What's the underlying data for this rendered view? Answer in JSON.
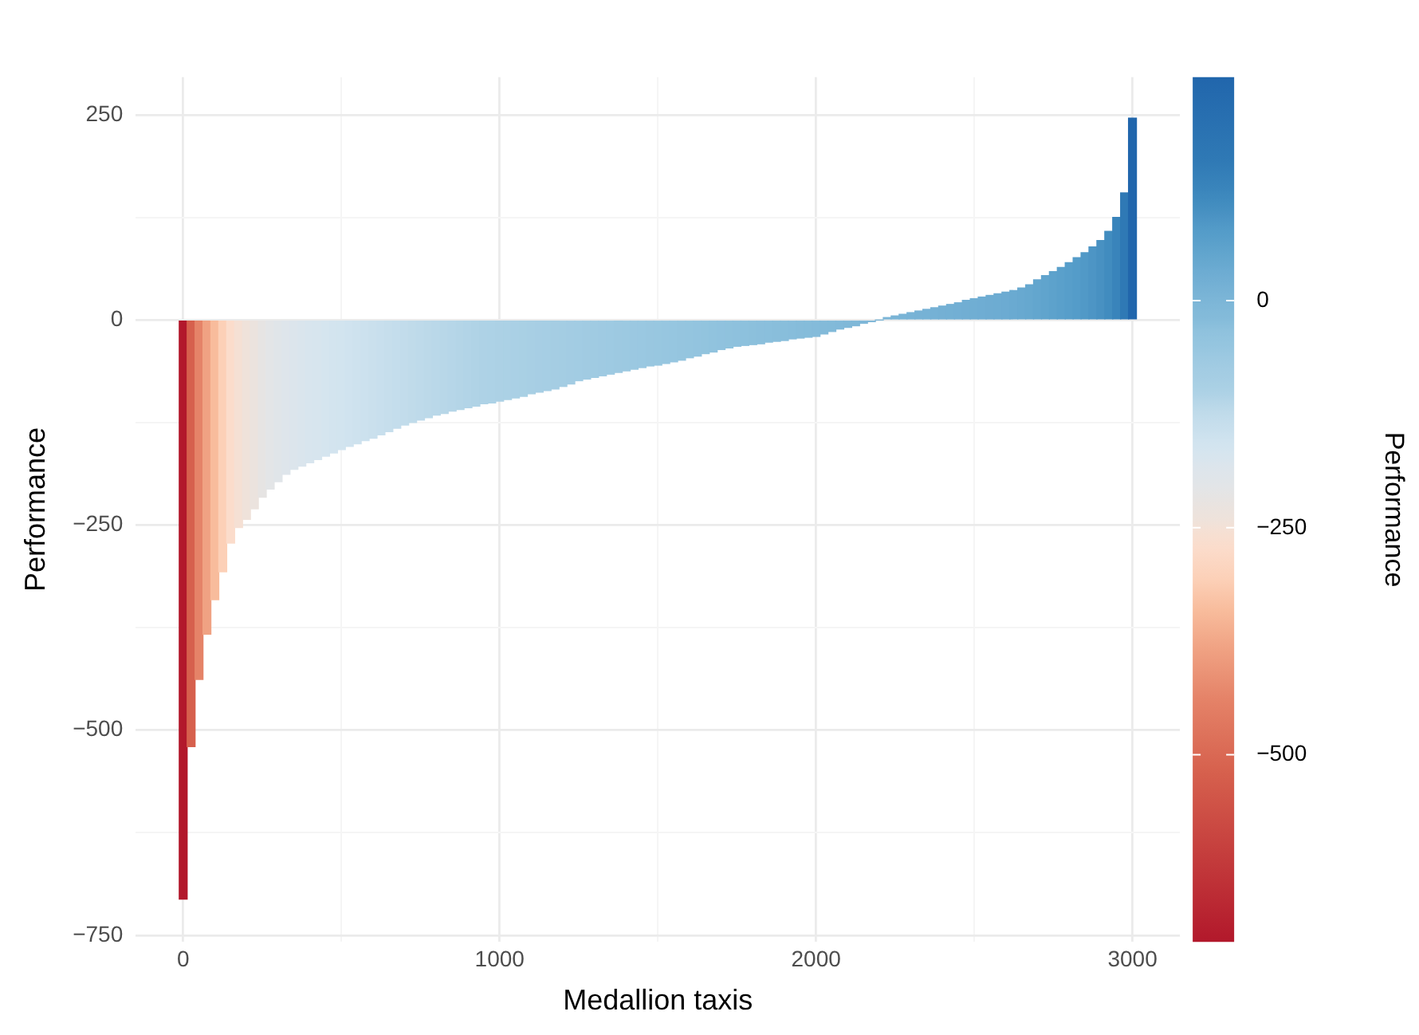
{
  "chart_data": {
    "type": "bar",
    "xlabel": "Medallion taxis",
    "ylabel": "Performance",
    "clabel": "Performance",
    "x": [
      0,
      25,
      50,
      75,
      100,
      125,
      150,
      175,
      200,
      225,
      250,
      275,
      300,
      325,
      350,
      375,
      400,
      425,
      450,
      475,
      500,
      525,
      550,
      575,
      600,
      625,
      650,
      675,
      700,
      725,
      750,
      775,
      800,
      825,
      850,
      875,
      900,
      925,
      950,
      975,
      1000,
      1025,
      1050,
      1075,
      1100,
      1125,
      1150,
      1175,
      1200,
      1225,
      1250,
      1275,
      1300,
      1325,
      1350,
      1375,
      1400,
      1425,
      1450,
      1475,
      1500,
      1525,
      1550,
      1575,
      1600,
      1625,
      1650,
      1675,
      1700,
      1725,
      1750,
      1775,
      1800,
      1825,
      1850,
      1875,
      1900,
      1925,
      1950,
      1975,
      2000,
      2025,
      2050,
      2075,
      2100,
      2125,
      2150,
      2175,
      2200,
      2225,
      2250,
      2275,
      2300,
      2325,
      2350,
      2375,
      2400,
      2425,
      2450,
      2475,
      2500,
      2525,
      2550,
      2575,
      2600,
      2625,
      2650,
      2675,
      2700,
      2725,
      2750,
      2775,
      2800,
      2825,
      2850,
      2875,
      2900,
      2925,
      2950,
      2975,
      3000
    ],
    "values": [
      -706,
      -520,
      -438,
      -383,
      -341,
      -307,
      -272,
      -253,
      -243,
      -230,
      -216,
      -206,
      -197,
      -188,
      -182,
      -178,
      -174,
      -170,
      -166,
      -162,
      -158,
      -154,
      -151,
      -147,
      -144,
      -140,
      -136,
      -132,
      -128,
      -125,
      -122,
      -119,
      -116,
      -114,
      -111,
      -109,
      -107,
      -105,
      -102,
      -101,
      -99,
      -97,
      -95,
      -93,
      -90,
      -88,
      -86,
      -84,
      -81,
      -78,
      -74,
      -72,
      -70,
      -68,
      -66,
      -64,
      -62,
      -60,
      -58,
      -56,
      -55,
      -53,
      -51,
      -49,
      -46,
      -44,
      -41,
      -39,
      -36,
      -34,
      -32,
      -31,
      -30,
      -29,
      -27,
      -26,
      -25,
      -23,
      -22,
      -21,
      -20,
      -17,
      -14,
      -11,
      -9,
      -7,
      -4,
      -2,
      0,
      3,
      5,
      7,
      9,
      11,
      13,
      15,
      17,
      19,
      21,
      24,
      26,
      28,
      30,
      32,
      34,
      36,
      39,
      43,
      49,
      54,
      59,
      64,
      70,
      76,
      82,
      89,
      97,
      108,
      125,
      155,
      246
    ],
    "colors": [
      "#b2182b",
      "#d6604d",
      "#e58368",
      "#f0a283",
      "#f8bc9c",
      "#fcd0b7",
      "#fbdccb",
      "#f5e0d4",
      "#efe2da",
      "#ebe3de",
      "#e6e4e3",
      "#e3e5e7",
      "#e0e5e9",
      "#dee5eb",
      "#dce5ec",
      "#dae5ed",
      "#d8e5ee",
      "#d7e5ee",
      "#d5e5ef",
      "#d3e4ef",
      "#d2e4ef",
      "#d0e3ef",
      "#cee2ee",
      "#cce1ee",
      "#cae0ed",
      "#c8dfed",
      "#c6deec",
      "#c4ddec",
      "#c2dceb",
      "#c0dbea",
      "#bedaea",
      "#bcd9e9",
      "#bad8e9",
      "#b8d7e8",
      "#b6d6e8",
      "#b4d5e7",
      "#b2d4e7",
      "#b0d3e6",
      "#aed2e6",
      "#add2e6",
      "#acd1e5",
      "#abd1e5",
      "#aad0e5",
      "#a9d0e4",
      "#a8cfe4",
      "#a7cee4",
      "#a6cee4",
      "#a5cde3",
      "#a4cde3",
      "#a3cce3",
      "#a2cce3",
      "#a1cbe2",
      "#a0cbe2",
      "#9fcae2",
      "#9ecae2",
      "#9dc9e1",
      "#9cc9e1",
      "#9bc8e1",
      "#9ac8e1",
      "#99c7e0",
      "#98c7e0",
      "#97c6e0",
      "#96c6e0",
      "#95c5df",
      "#94c5df",
      "#93c4df",
      "#92c4de",
      "#91c3de",
      "#90c2de",
      "#8fc2dd",
      "#8ec1dd",
      "#8dc1dd",
      "#8cc0dc",
      "#8bbfdc",
      "#8abfdc",
      "#89bedb",
      "#88bedb",
      "#87bddb",
      "#86bcda",
      "#85bcda",
      "#84bbda",
      "#83bad9",
      "#82bad9",
      "#81b9d9",
      "#80b8d8",
      "#7fb8d8",
      "#7eb7d8",
      "#7db6d7",
      "#7cb6d7",
      "#7bb5d7",
      "#7ab4d6",
      "#79b4d6",
      "#78b3d6",
      "#77b2d5",
      "#76b2d5",
      "#75b1d5",
      "#74b0d4",
      "#73b0d4",
      "#72afd4",
      "#71aed3",
      "#70aed3",
      "#6fadd3",
      "#6eacd2",
      "#6dacd2",
      "#6cabd2",
      "#6aaad1",
      "#68a9d0",
      "#66a8cf",
      "#63a6ce",
      "#60a4cd",
      "#5da2cc",
      "#5aa0cb",
      "#579eca",
      "#549cc9",
      "#5199c7",
      "#4d95c5",
      "#4891c2",
      "#418cbf",
      "#3984bb",
      "#2f79b5",
      "#2166ac"
    ],
    "xlim": [
      -150,
      3150
    ],
    "xticks": [
      0,
      {
        "value": 500,
        "label": null
      },
      1000,
      {
        "value": 1500,
        "label": null
      },
      2000,
      {
        "value": 2500,
        "label": null
      },
      3000
    ],
    "ylim": [
      -758,
      296
    ],
    "yticks": [
      -750,
      {
        "value": -625,
        "label": null
      },
      -500,
      {
        "value": -375,
        "label": null
      },
      -250,
      {
        "value": -125,
        "label": null
      },
      0,
      {
        "value": 125,
        "label": null
      },
      250
    ],
    "clim": [
      -706,
      246
    ],
    "cticks": [
      -500,
      -250,
      0
    ],
    "grid": true,
    "legend": false
  }
}
